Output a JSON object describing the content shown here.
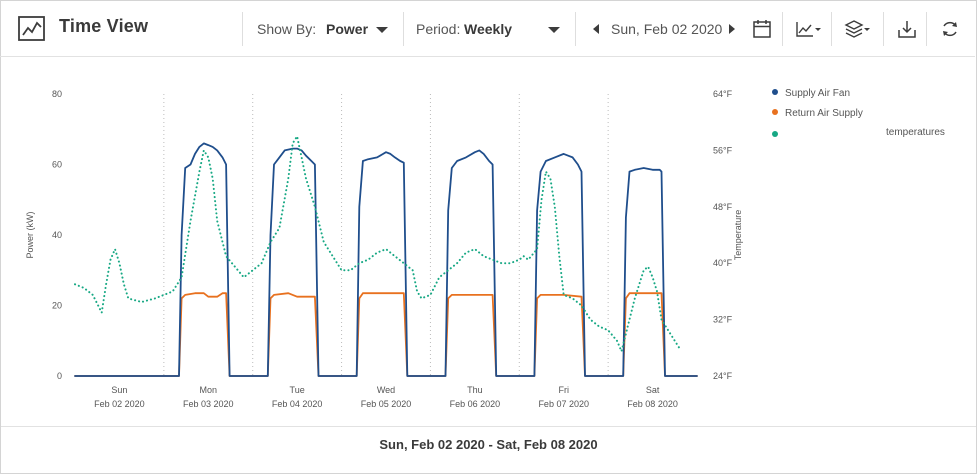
{
  "header": {
    "title": "Time View",
    "show_by_label": "Show By:",
    "show_by_value": "Power",
    "period_label": "Period:",
    "period_value": "Weekly",
    "date": "Sun, Feb 02 2020"
  },
  "icons": [
    "chart-line-icon",
    "chevron-left-icon",
    "chevron-right-icon",
    "calendar-icon",
    "line-chart-icon",
    "layers-icon",
    "download-icon",
    "refresh-icon"
  ],
  "footer": {
    "range": "Sun, Feb 02 2020 - Sat, Feb 08 2020"
  },
  "colors": {
    "supply_fan": "#1f4e8c",
    "return_supply": "#e8711f",
    "temperature": "#17a884"
  },
  "chart_data": {
    "type": "line",
    "ylabel": "Power (kW)",
    "y2label": "Temperature",
    "ylim": [
      0,
      80
    ],
    "y2lim": [
      24,
      64
    ],
    "y_ticks": [
      "0",
      "20",
      "40",
      "60",
      "80"
    ],
    "y2_ticks": [
      "24°F",
      "32°F",
      "40°F",
      "48°F",
      "56°F",
      "64°F"
    ],
    "x_range": [
      0,
      7
    ],
    "x_day_starts": [
      1,
      2,
      3,
      4,
      5,
      6
    ],
    "x_ticks": [
      {
        "day": "Sun",
        "date": "Feb 02 2020",
        "x": 0.5
      },
      {
        "day": "Mon",
        "date": "Feb 03 2020",
        "x": 1.5
      },
      {
        "day": "Tue",
        "date": "Feb 04 2020",
        "x": 2.5
      },
      {
        "day": "Wed",
        "date": "Feb 05 2020",
        "x": 3.5
      },
      {
        "day": "Thu",
        "date": "Feb 06 2020",
        "x": 4.5
      },
      {
        "day": "Fri",
        "date": "Feb 07 2020",
        "x": 5.5
      },
      {
        "day": "Sat",
        "date": "Feb 08 2020",
        "x": 6.5
      }
    ],
    "legend_position": "right",
    "grid": "vertical dotted day separators",
    "series": [
      {
        "name": "Supply Air Fan",
        "axis": "left",
        "style": "solid",
        "points": [
          [
            0,
            0
          ],
          [
            0.3,
            0
          ],
          [
            0.7,
            0
          ],
          [
            1.17,
            0
          ],
          [
            1.2,
            40
          ],
          [
            1.24,
            59
          ],
          [
            1.3,
            60
          ],
          [
            1.35,
            63
          ],
          [
            1.4,
            65
          ],
          [
            1.45,
            66
          ],
          [
            1.5,
            65.5
          ],
          [
            1.55,
            65
          ],
          [
            1.6,
            64
          ],
          [
            1.66,
            62
          ],
          [
            1.7,
            60
          ],
          [
            1.74,
            0
          ],
          [
            1.8,
            0
          ],
          [
            2.0,
            0
          ],
          [
            2.17,
            0
          ],
          [
            2.2,
            40
          ],
          [
            2.24,
            60
          ],
          [
            2.3,
            62
          ],
          [
            2.36,
            64
          ],
          [
            2.45,
            64.5
          ],
          [
            2.5,
            64.5
          ],
          [
            2.55,
            64
          ],
          [
            2.6,
            62.5
          ],
          [
            2.66,
            61
          ],
          [
            2.7,
            60
          ],
          [
            2.74,
            0
          ],
          [
            2.8,
            0
          ],
          [
            3.17,
            0
          ],
          [
            3.2,
            48
          ],
          [
            3.24,
            61
          ],
          [
            3.3,
            61.5
          ],
          [
            3.4,
            62
          ],
          [
            3.5,
            63.5
          ],
          [
            3.55,
            63
          ],
          [
            3.6,
            62
          ],
          [
            3.66,
            61
          ],
          [
            3.7,
            60.5
          ],
          [
            3.74,
            0
          ],
          [
            4.17,
            0
          ],
          [
            4.2,
            47
          ],
          [
            4.24,
            59
          ],
          [
            4.3,
            61
          ],
          [
            4.4,
            62
          ],
          [
            4.5,
            63.5
          ],
          [
            4.55,
            64
          ],
          [
            4.6,
            63
          ],
          [
            4.66,
            61
          ],
          [
            4.7,
            60
          ],
          [
            4.74,
            0
          ],
          [
            5.17,
            0
          ],
          [
            5.2,
            47
          ],
          [
            5.24,
            58
          ],
          [
            5.3,
            61
          ],
          [
            5.4,
            62
          ],
          [
            5.5,
            63
          ],
          [
            5.55,
            62.5
          ],
          [
            5.6,
            62
          ],
          [
            5.66,
            60
          ],
          [
            5.7,
            58
          ],
          [
            5.74,
            0
          ],
          [
            6.0,
            0
          ],
          [
            6.17,
            0
          ],
          [
            6.2,
            45
          ],
          [
            6.24,
            58
          ],
          [
            6.3,
            58.5
          ],
          [
            6.4,
            59
          ],
          [
            6.5,
            58.5
          ],
          [
            6.58,
            58.5
          ],
          [
            6.6,
            58
          ],
          [
            6.64,
            0
          ],
          [
            7.0,
            0
          ]
        ]
      },
      {
        "name": "Return Air Supply",
        "axis": "left",
        "style": "solid",
        "points": [
          [
            0,
            0
          ],
          [
            1.17,
            0
          ],
          [
            1.2,
            22
          ],
          [
            1.24,
            23
          ],
          [
            1.35,
            23.5
          ],
          [
            1.45,
            23.5
          ],
          [
            1.5,
            22.5
          ],
          [
            1.6,
            22.5
          ],
          [
            1.66,
            23.5
          ],
          [
            1.7,
            23.5
          ],
          [
            1.74,
            0
          ],
          [
            2.17,
            0
          ],
          [
            2.2,
            22
          ],
          [
            2.24,
            23
          ],
          [
            2.4,
            23.5
          ],
          [
            2.5,
            22.5
          ],
          [
            2.7,
            22.5
          ],
          [
            2.74,
            0
          ],
          [
            3.17,
            0
          ],
          [
            3.2,
            22
          ],
          [
            3.24,
            23.5
          ],
          [
            3.7,
            23.5
          ],
          [
            3.74,
            0
          ],
          [
            4.17,
            0
          ],
          [
            4.2,
            22
          ],
          [
            4.24,
            23
          ],
          [
            4.7,
            23
          ],
          [
            4.74,
            0
          ],
          [
            5.17,
            0
          ],
          [
            5.2,
            22
          ],
          [
            5.24,
            23
          ],
          [
            5.4,
            23
          ],
          [
            5.5,
            23
          ],
          [
            5.7,
            22.5
          ],
          [
            5.74,
            0
          ],
          [
            6.17,
            0
          ],
          [
            6.2,
            22
          ],
          [
            6.24,
            23.5
          ],
          [
            6.6,
            23.5
          ],
          [
            6.64,
            0
          ],
          [
            7.0,
            0
          ]
        ]
      },
      {
        "name": "",
        "axis": "right",
        "style": "dotted",
        "points": [
          [
            0,
            37
          ],
          [
            0.1,
            36.5
          ],
          [
            0.2,
            35.5
          ],
          [
            0.3,
            33
          ],
          [
            0.35,
            37
          ],
          [
            0.4,
            40.5
          ],
          [
            0.45,
            42
          ],
          [
            0.5,
            40
          ],
          [
            0.55,
            37
          ],
          [
            0.6,
            35
          ],
          [
            0.75,
            34.5
          ],
          [
            0.9,
            35
          ],
          [
            1.0,
            35.5
          ],
          [
            1.1,
            36
          ],
          [
            1.2,
            38
          ],
          [
            1.3,
            46
          ],
          [
            1.4,
            53
          ],
          [
            1.45,
            56
          ],
          [
            1.5,
            55
          ],
          [
            1.55,
            52
          ],
          [
            1.6,
            46
          ],
          [
            1.7,
            41
          ],
          [
            1.8,
            39.5
          ],
          [
            1.9,
            38
          ],
          [
            2.0,
            39
          ],
          [
            2.1,
            40
          ],
          [
            2.2,
            43
          ],
          [
            2.3,
            45
          ],
          [
            2.4,
            52
          ],
          [
            2.45,
            57
          ],
          [
            2.5,
            58
          ],
          [
            2.55,
            55
          ],
          [
            2.6,
            52
          ],
          [
            2.7,
            48
          ],
          [
            2.8,
            43
          ],
          [
            2.9,
            41
          ],
          [
            3.0,
            39
          ],
          [
            3.1,
            39
          ],
          [
            3.2,
            40
          ],
          [
            3.3,
            40.5
          ],
          [
            3.4,
            41.5
          ],
          [
            3.5,
            42
          ],
          [
            3.6,
            41
          ],
          [
            3.7,
            40
          ],
          [
            3.8,
            39
          ],
          [
            3.85,
            36
          ],
          [
            3.9,
            35
          ],
          [
            4.0,
            35.5
          ],
          [
            4.1,
            38
          ],
          [
            4.2,
            39
          ],
          [
            4.3,
            40
          ],
          [
            4.4,
            41.5
          ],
          [
            4.5,
            42
          ],
          [
            4.6,
            41
          ],
          [
            4.7,
            40.5
          ],
          [
            4.8,
            40
          ],
          [
            4.9,
            40
          ],
          [
            5.0,
            40.5
          ],
          [
            5.05,
            41
          ],
          [
            5.1,
            40.5
          ],
          [
            5.2,
            42
          ],
          [
            5.25,
            49
          ],
          [
            5.3,
            53
          ],
          [
            5.35,
            52
          ],
          [
            5.4,
            48
          ],
          [
            5.45,
            41
          ],
          [
            5.5,
            35.5
          ],
          [
            5.6,
            35
          ],
          [
            5.7,
            34
          ],
          [
            5.8,
            32
          ],
          [
            5.9,
            31
          ],
          [
            6.0,
            30.5
          ],
          [
            6.1,
            29
          ],
          [
            6.15,
            27.5
          ],
          [
            6.2,
            30
          ],
          [
            6.3,
            35
          ],
          [
            6.4,
            39
          ],
          [
            6.45,
            39.5
          ],
          [
            6.5,
            38
          ],
          [
            6.55,
            36
          ],
          [
            6.6,
            32
          ],
          [
            6.7,
            30
          ],
          [
            6.8,
            28
          ]
        ]
      }
    ]
  },
  "legend": {
    "item1": "Supply Air Fan",
    "item2": "Return Air Supply",
    "item3": "temperatures"
  }
}
